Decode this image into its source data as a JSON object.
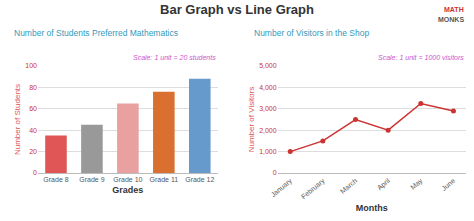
{
  "title": "Bar Graph vs Line Graph",
  "annotations": [
    "MATH",
    "MONKS"
  ],
  "chart_data": [
    {
      "type": "bar",
      "title": "Number of Students Preferred Mathematics",
      "subtitle": "Scale: 1 unit = 20 students",
      "categories": [
        "Grade 8",
        "Grade 9",
        "Grade 10",
        "Grade 11",
        "Grade 12"
      ],
      "values": [
        35,
        45,
        65,
        76,
        88
      ],
      "colors": [
        "#e05555",
        "#999999",
        "#e8a0a0",
        "#d97030",
        "#6699cc"
      ],
      "xlabel": "Grades",
      "ylabel": "Number of Students",
      "ylim": [
        0,
        100
      ],
      "yticks": [
        0,
        20,
        40,
        60,
        80,
        100
      ],
      "grid": true
    },
    {
      "type": "line",
      "title": "Number of Visitors in the Shop",
      "subtitle": "Scale: 1 unit = 1000 visitors",
      "categories": [
        "January",
        "February",
        "March",
        "April",
        "May",
        "June"
      ],
      "values": [
        1000,
        1500,
        2500,
        2000,
        3250,
        2900
      ],
      "color": "#cc3333",
      "marker": "circle",
      "line_style": "solid",
      "xlabel": "Months",
      "ylabel": "Number of Visitors",
      "ylim": [
        0,
        5000
      ],
      "yticks": [
        0,
        {
          "value": 1000,
          "label": "1,000"
        },
        {
          "value": 2000,
          "label": "2,000"
        },
        {
          "value": 3000,
          "label": "3,000"
        },
        {
          "value": 4000,
          "label": "4,000"
        },
        {
          "value": 5000,
          "label": "5,000"
        }
      ],
      "grid": true
    }
  ]
}
